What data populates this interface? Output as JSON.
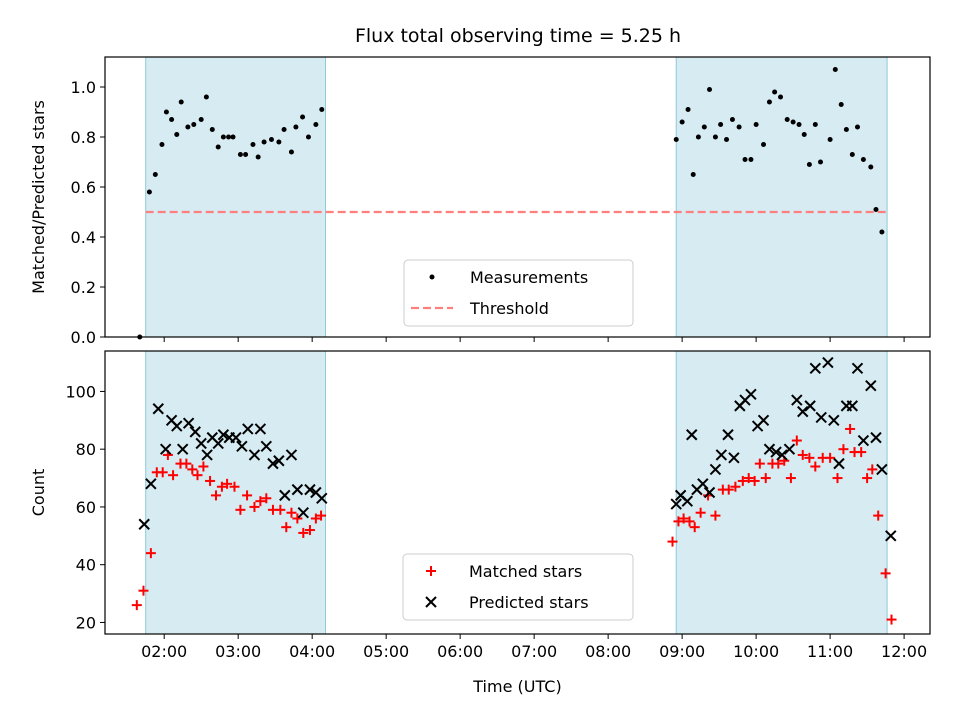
{
  "title": "Flux total observing time = 5.25 h",
  "chart_data": [
    {
      "type": "scatter",
      "ylabel": "Matched/Predicted stars",
      "xlabel": "",
      "ylim": [
        0,
        1.12
      ],
      "yticks": [
        "0.0",
        "0.2",
        "0.4",
        "0.6",
        "0.8",
        "1.0"
      ],
      "grid": false,
      "legend": "lower center",
      "shaded_intervals": [
        [
          1.75,
          4.18
        ],
        [
          8.92,
          11.77
        ]
      ],
      "threshold": {
        "name": "Threshold",
        "value": 0.5,
        "x_range": [
          1.75,
          11.77
        ],
        "color": "#ff7f7f"
      },
      "series": [
        {
          "name": "Measurements",
          "color": "#000000",
          "points": [
            [
              1.67,
              0.0
            ],
            [
              1.8,
              0.58
            ],
            [
              1.88,
              0.65
            ],
            [
              1.97,
              0.77
            ],
            [
              2.03,
              0.9
            ],
            [
              2.1,
              0.87
            ],
            [
              2.17,
              0.81
            ],
            [
              2.23,
              0.94
            ],
            [
              2.32,
              0.84
            ],
            [
              2.4,
              0.85
            ],
            [
              2.5,
              0.87
            ],
            [
              2.57,
              0.96
            ],
            [
              2.65,
              0.83
            ],
            [
              2.73,
              0.76
            ],
            [
              2.8,
              0.8
            ],
            [
              2.87,
              0.8
            ],
            [
              2.93,
              0.8
            ],
            [
              3.03,
              0.73
            ],
            [
              3.1,
              0.73
            ],
            [
              3.2,
              0.77
            ],
            [
              3.27,
              0.72
            ],
            [
              3.35,
              0.78
            ],
            [
              3.45,
              0.79
            ],
            [
              3.55,
              0.78
            ],
            [
              3.62,
              0.83
            ],
            [
              3.72,
              0.74
            ],
            [
              3.78,
              0.84
            ],
            [
              3.87,
              0.88
            ],
            [
              3.95,
              0.8
            ],
            [
              4.05,
              0.85
            ],
            [
              4.13,
              0.91
            ],
            [
              8.92,
              0.79
            ],
            [
              9.0,
              0.86
            ],
            [
              9.08,
              0.91
            ],
            [
              9.15,
              0.65
            ],
            [
              9.22,
              0.8
            ],
            [
              9.3,
              0.84
            ],
            [
              9.37,
              0.99
            ],
            [
              9.45,
              0.8
            ],
            [
              9.52,
              0.85
            ],
            [
              9.6,
              0.79
            ],
            [
              9.68,
              0.87
            ],
            [
              9.77,
              0.84
            ],
            [
              9.85,
              0.71
            ],
            [
              9.93,
              0.71
            ],
            [
              10.0,
              0.85
            ],
            [
              10.1,
              0.77
            ],
            [
              10.18,
              0.94
            ],
            [
              10.25,
              0.98
            ],
            [
              10.33,
              0.96
            ],
            [
              10.42,
              0.87
            ],
            [
              10.5,
              0.86
            ],
            [
              10.58,
              0.85
            ],
            [
              10.65,
              0.81
            ],
            [
              10.72,
              0.69
            ],
            [
              10.8,
              0.85
            ],
            [
              10.87,
              0.7
            ],
            [
              11.0,
              0.79
            ],
            [
              11.07,
              1.07
            ],
            [
              11.15,
              0.93
            ],
            [
              11.22,
              0.83
            ],
            [
              11.3,
              0.73
            ],
            [
              11.37,
              0.84
            ],
            [
              11.45,
              0.71
            ],
            [
              11.55,
              0.68
            ],
            [
              11.62,
              0.51
            ],
            [
              11.7,
              0.42
            ]
          ]
        }
      ]
    },
    {
      "type": "scatter",
      "ylabel": "Count",
      "xlabel": "Time (UTC)",
      "ylim": [
        16,
        114
      ],
      "xlim": [
        1.2,
        12.35
      ],
      "yticks": [
        "20",
        "40",
        "60",
        "80",
        "100"
      ],
      "xticks": [
        "02:00",
        "03:00",
        "04:00",
        "05:00",
        "06:00",
        "07:00",
        "08:00",
        "09:00",
        "10:00",
        "11:00",
        "12:00"
      ],
      "grid": false,
      "legend": "lower center",
      "shaded_intervals": [
        [
          1.75,
          4.18
        ],
        [
          8.92,
          11.77
        ]
      ],
      "series": [
        {
          "name": "Matched stars",
          "color": "#ff0000",
          "marker": "plus",
          "points": [
            [
              1.63,
              26
            ],
            [
              1.72,
              31
            ],
            [
              1.82,
              44
            ],
            [
              1.9,
              72
            ],
            [
              1.98,
              72
            ],
            [
              2.05,
              78
            ],
            [
              2.12,
              71
            ],
            [
              2.22,
              75
            ],
            [
              2.3,
              75
            ],
            [
              2.38,
              73
            ],
            [
              2.45,
              71
            ],
            [
              2.53,
              74
            ],
            [
              2.62,
              69
            ],
            [
              2.7,
              64
            ],
            [
              2.78,
              67
            ],
            [
              2.85,
              68
            ],
            [
              2.95,
              67
            ],
            [
              3.03,
              59
            ],
            [
              3.12,
              64
            ],
            [
              3.22,
              60
            ],
            [
              3.3,
              62
            ],
            [
              3.38,
              63
            ],
            [
              3.47,
              59
            ],
            [
              3.57,
              59
            ],
            [
              3.65,
              53
            ],
            [
              3.72,
              58
            ],
            [
              3.8,
              56
            ],
            [
              3.88,
              51
            ],
            [
              3.97,
              52
            ],
            [
              4.05,
              56
            ],
            [
              4.12,
              57
            ],
            [
              8.87,
              48
            ],
            [
              8.95,
              55
            ],
            [
              9.02,
              56
            ],
            [
              9.1,
              55
            ],
            [
              9.17,
              53
            ],
            [
              9.25,
              58
            ],
            [
              9.35,
              64
            ],
            [
              9.45,
              57
            ],
            [
              9.55,
              66
            ],
            [
              9.63,
              66
            ],
            [
              9.72,
              67
            ],
            [
              9.82,
              69
            ],
            [
              9.9,
              70
            ],
            [
              9.98,
              69
            ],
            [
              10.05,
              75
            ],
            [
              10.13,
              70
            ],
            [
              10.22,
              75
            ],
            [
              10.3,
              75
            ],
            [
              10.38,
              76
            ],
            [
              10.47,
              70
            ],
            [
              10.55,
              83
            ],
            [
              10.63,
              78
            ],
            [
              10.72,
              77
            ],
            [
              10.8,
              74
            ],
            [
              10.9,
              77
            ],
            [
              11.0,
              77
            ],
            [
              11.1,
              70
            ],
            [
              11.18,
              80
            ],
            [
              11.27,
              87
            ],
            [
              11.33,
              79
            ],
            [
              11.42,
              79
            ],
            [
              11.5,
              70
            ],
            [
              11.57,
              73
            ],
            [
              11.65,
              57
            ],
            [
              11.75,
              37
            ],
            [
              11.83,
              21
            ]
          ]
        },
        {
          "name": "Predicted stars",
          "color": "#000000",
          "marker": "x",
          "points": [
            [
              1.73,
              54
            ],
            [
              1.82,
              68
            ],
            [
              1.92,
              94
            ],
            [
              2.02,
              80
            ],
            [
              2.1,
              90
            ],
            [
              2.17,
              88
            ],
            [
              2.25,
              80
            ],
            [
              2.33,
              89
            ],
            [
              2.42,
              86
            ],
            [
              2.5,
              82
            ],
            [
              2.58,
              78
            ],
            [
              2.65,
              84
            ],
            [
              2.73,
              82
            ],
            [
              2.8,
              85
            ],
            [
              2.88,
              84
            ],
            [
              2.97,
              84
            ],
            [
              3.05,
              81
            ],
            [
              3.13,
              87
            ],
            [
              3.22,
              78
            ],
            [
              3.3,
              87
            ],
            [
              3.38,
              81
            ],
            [
              3.47,
              75
            ],
            [
              3.55,
              76
            ],
            [
              3.63,
              64
            ],
            [
              3.72,
              78
            ],
            [
              3.8,
              66
            ],
            [
              3.88,
              58
            ],
            [
              3.97,
              66
            ],
            [
              4.05,
              65
            ],
            [
              4.13,
              63
            ],
            [
              8.92,
              61
            ],
            [
              8.98,
              64
            ],
            [
              9.07,
              62
            ],
            [
              9.13,
              85
            ],
            [
              9.2,
              66
            ],
            [
              9.28,
              68
            ],
            [
              9.37,
              65
            ],
            [
              9.45,
              73
            ],
            [
              9.53,
              78
            ],
            [
              9.62,
              85
            ],
            [
              9.7,
              77
            ],
            [
              9.78,
              95
            ],
            [
              9.85,
              97
            ],
            [
              9.93,
              99
            ],
            [
              10.02,
              88
            ],
            [
              10.1,
              90
            ],
            [
              10.18,
              80
            ],
            [
              10.27,
              79
            ],
            [
              10.35,
              78
            ],
            [
              10.45,
              80
            ],
            [
              10.55,
              97
            ],
            [
              10.63,
              93
            ],
            [
              10.73,
              95
            ],
            [
              10.8,
              108
            ],
            [
              10.88,
              91
            ],
            [
              10.97,
              110
            ],
            [
              11.05,
              90
            ],
            [
              11.12,
              75
            ],
            [
              11.22,
              95
            ],
            [
              11.3,
              95
            ],
            [
              11.37,
              108
            ],
            [
              11.45,
              83
            ],
            [
              11.55,
              102
            ],
            [
              11.62,
              84
            ],
            [
              11.7,
              73
            ],
            [
              11.82,
              50
            ]
          ]
        }
      ]
    }
  ]
}
